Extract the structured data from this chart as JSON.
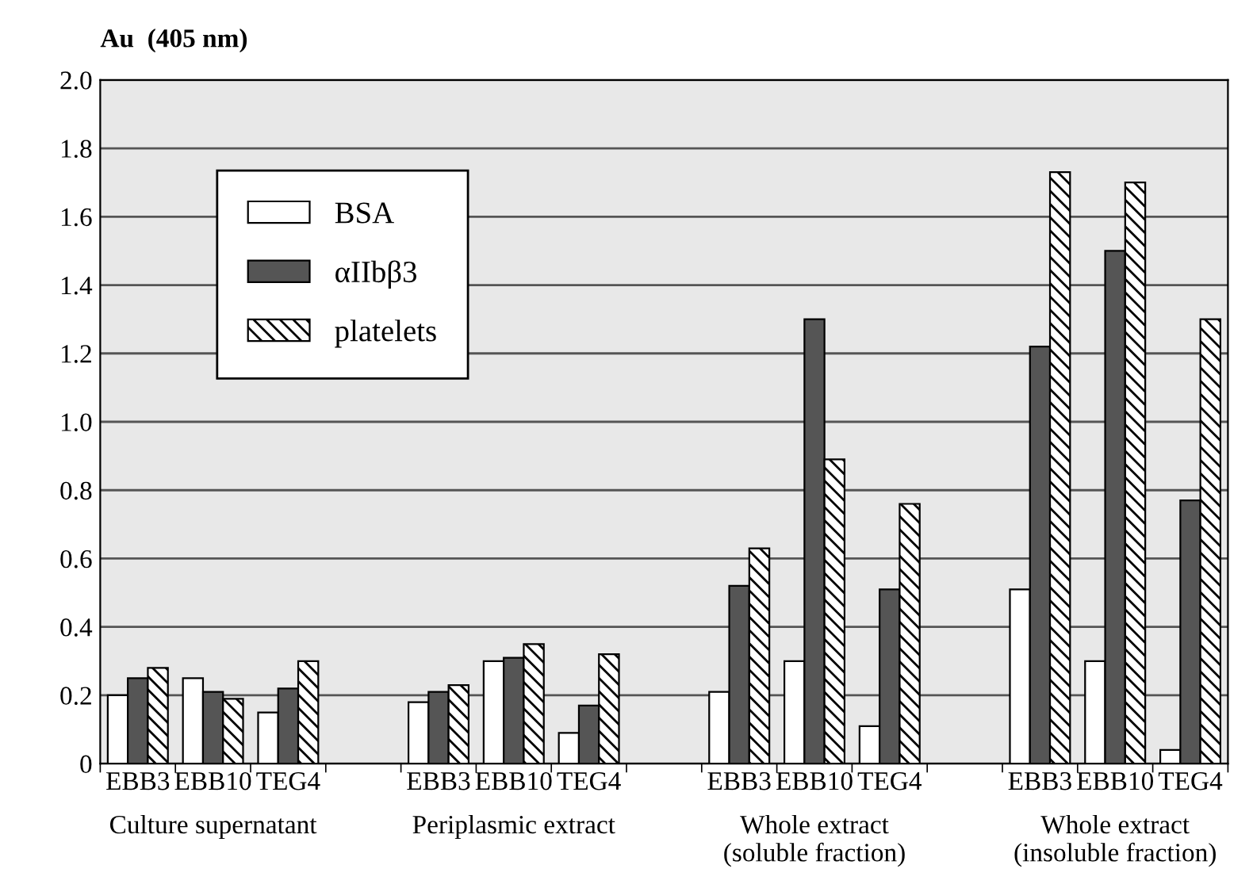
{
  "chart_data": {
    "type": "bar",
    "ylabel": "Au  (405 nm)",
    "categories": [
      "EBB3",
      "EBB10",
      "TEG4",
      null,
      "EBB3",
      "EBB10",
      "TEG4",
      null,
      "EBB3",
      "EBB10",
      "TEG4",
      null,
      "EBB3",
      "EBB10",
      "TEG4"
    ],
    "series": [
      {
        "name": "BSA",
        "color": "#ffffff",
        "values": [
          0.2,
          0.25,
          0.15,
          null,
          0.18,
          0.3,
          0.09,
          null,
          0.21,
          0.3,
          0.11,
          null,
          0.51,
          0.3,
          0.04
        ]
      },
      {
        "name": "αIIbβ3",
        "color": "#555555",
        "values": [
          0.25,
          0.21,
          0.22,
          null,
          0.21,
          0.31,
          0.17,
          null,
          0.52,
          1.3,
          0.51,
          null,
          1.22,
          1.5,
          0.77
        ]
      },
      {
        "name": "platelets",
        "color": "#000000",
        "values": [
          0.28,
          0.19,
          0.3,
          null,
          0.23,
          0.35,
          0.32,
          null,
          0.63,
          0.89,
          0.76,
          null,
          1.73,
          1.7,
          1.3
        ]
      }
    ],
    "annotations": [
      "Culture supernatant",
      "Periplasmic extract",
      "Whole extract\n(soluble fraction)",
      "Whole extract\n(insoluble fraction)"
    ],
    "ylim": [
      0,
      2.0
    ],
    "yticks": [
      0,
      0.2,
      0.4,
      0.6,
      0.8,
      {
        "value": 1,
        "label": "1.0"
      },
      1.2,
      1.4,
      1.6,
      1.8,
      {
        "value": 2,
        "label": "2.0"
      }
    ],
    "grid": "y",
    "legend": "top left"
  }
}
